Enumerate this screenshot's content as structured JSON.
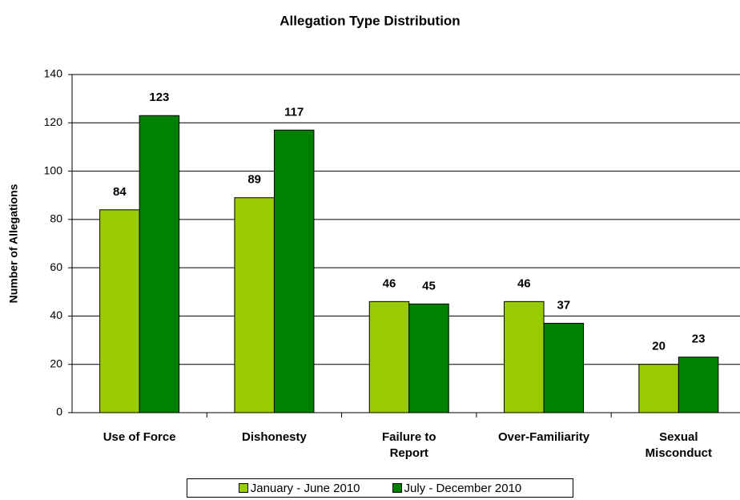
{
  "chart_data": {
    "type": "bar",
    "title": "Allegation Type Distribution",
    "y_axis_label": "Number of Allegations",
    "categories": [
      "Use of Force",
      "Dishonesty",
      "Failure to Report",
      "Over-Familiarity",
      "Sexual Misconduct"
    ],
    "series": [
      {
        "name": "January - June 2010",
        "color": "#99cc00",
        "values": [
          84,
          89,
          46,
          46,
          20
        ]
      },
      {
        "name": "July - December 2010",
        "color": "#008000",
        "values": [
          123,
          117,
          45,
          37,
          23
        ]
      }
    ],
    "ylim": [
      0,
      140
    ],
    "yticks": [
      0,
      20,
      40,
      60,
      80,
      100,
      120,
      140
    ],
    "grid": true,
    "legend": "bottom"
  }
}
